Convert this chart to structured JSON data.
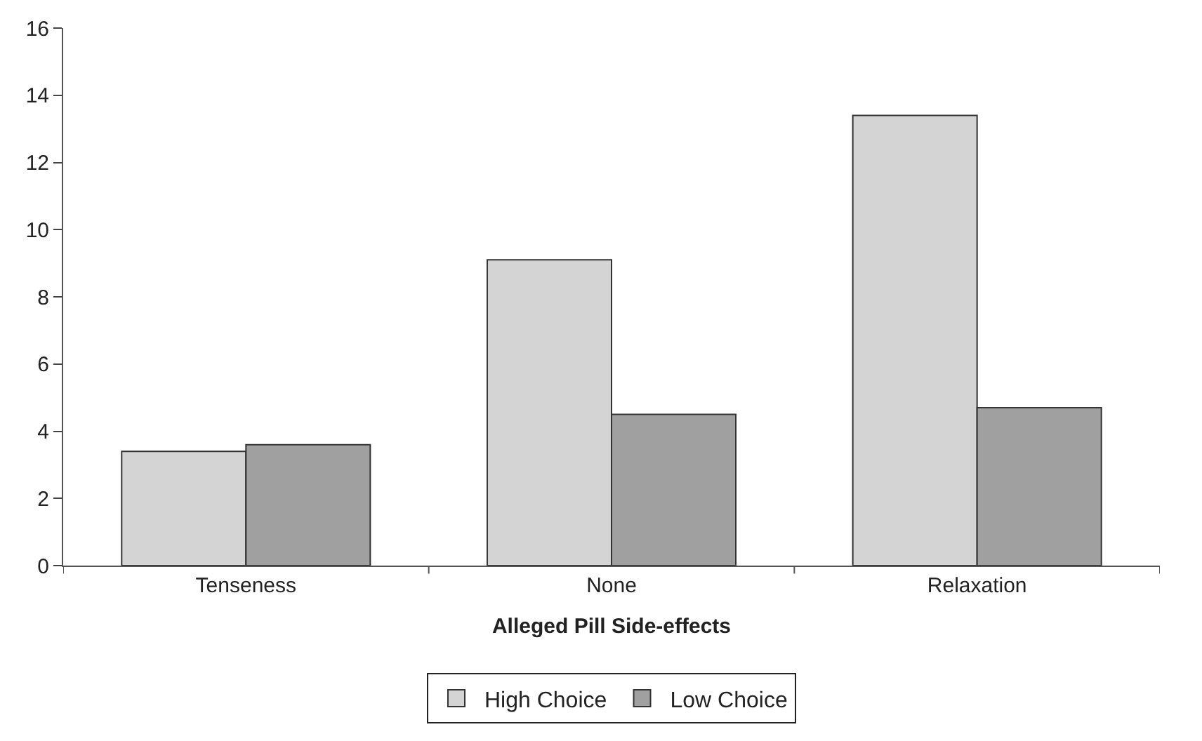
{
  "chart_data": {
    "type": "bar",
    "xlabel": "Alleged Pill Side-effects",
    "categories": [
      "Tenseness",
      "None",
      "Relaxation"
    ],
    "series": [
      {
        "name": "High Choice",
        "color": "#d4d4d4",
        "values": [
          3.4,
          9.1,
          13.4
        ]
      },
      {
        "name": "Low Choice",
        "color": "#a0a0a0",
        "values": [
          3.6,
          4.5,
          4.7
        ]
      }
    ],
    "ylim": [
      0,
      16
    ],
    "yticks": [
      0,
      2,
      4,
      6,
      8,
      10,
      12,
      14,
      16
    ],
    "legend": "bottom"
  }
}
